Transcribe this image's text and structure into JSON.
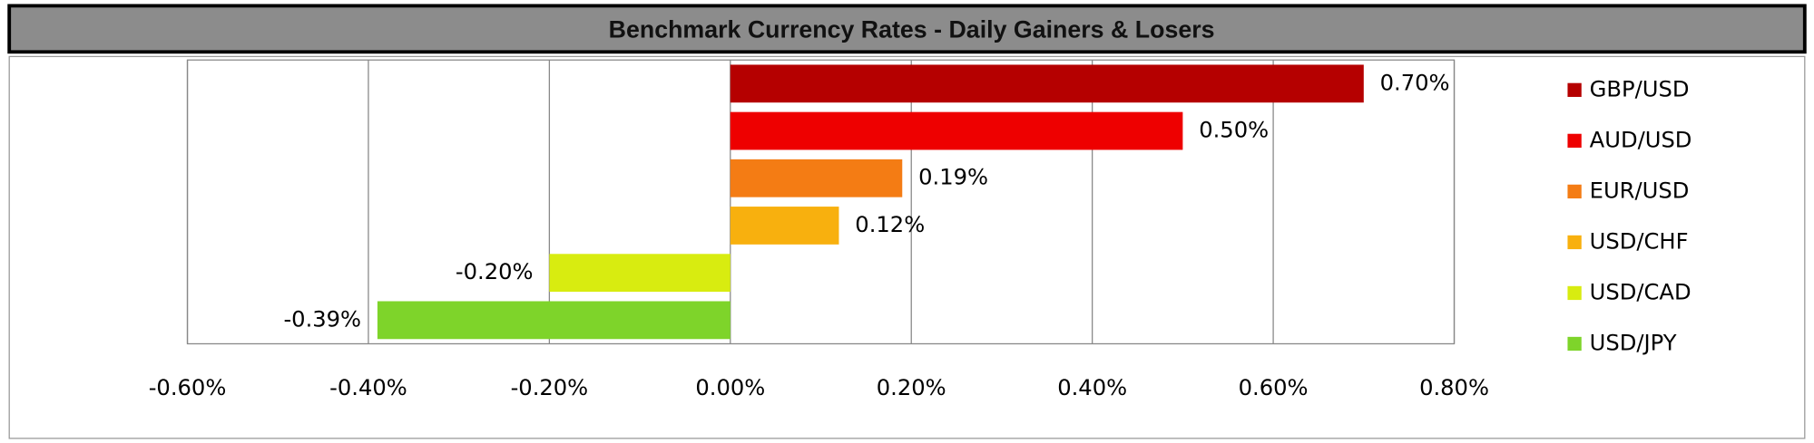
{
  "chart_data": {
    "type": "bar",
    "orientation": "horizontal",
    "title": "Benchmark Currency Rates - Daily Gainers & Losers",
    "categories": [
      "GBP/USD",
      "AUD/USD",
      "EUR/USD",
      "USD/CHF",
      "USD/CAD",
      "USD/JPY"
    ],
    "values": [
      0.7,
      0.5,
      0.19,
      0.12,
      -0.2,
      -0.39
    ],
    "value_labels": [
      "0.70%",
      "0.50%",
      "0.19%",
      "0.12%",
      "-0.20%",
      "-0.39%"
    ],
    "colors": [
      "#b50000",
      "#ee0000",
      "#f47c14",
      "#f8b00e",
      "#d8ec10",
      "#7ed42a"
    ],
    "xlim": [
      -0.6,
      0.8
    ],
    "xticks": [
      {
        "value": -0.6,
        "label": "-0.60%"
      },
      {
        "value": -0.4,
        "label": "-0.40%"
      },
      {
        "value": -0.2,
        "label": "-0.20%"
      },
      {
        "value": 0,
        "label": "0.00%"
      },
      {
        "value": 0.2,
        "label": "0.20%"
      },
      {
        "value": 0.4,
        "label": "0.40%"
      },
      {
        "value": 0.6,
        "label": "0.60%"
      },
      {
        "value": 0.8,
        "label": "0.80%"
      }
    ],
    "grid": true,
    "legend": "right"
  }
}
